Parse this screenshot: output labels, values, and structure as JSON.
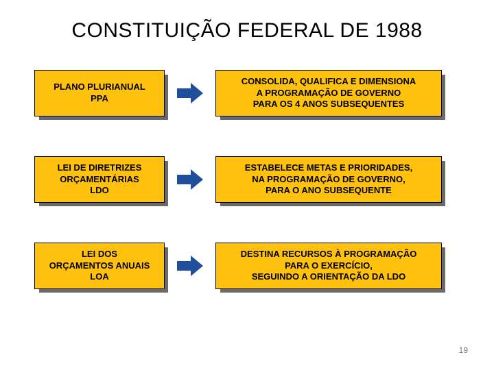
{
  "title": "CONSTITUIÇÃO FEDERAL DE 1988",
  "page_number": "19",
  "colors": {
    "box_fill": "#fec10d",
    "box_border": "#000000",
    "shadow": "#6a6a6a",
    "arrow_fill": "#1f4e9c",
    "text": "#000000",
    "title_text": "#000000",
    "page_num": "#7a7a7a",
    "background": "#ffffff"
  },
  "rows": [
    {
      "left": "PLANO PLURIANUAL\nPPA",
      "right": "CONSOLIDA, QUALIFICA E DIMENSIONA\nA PROGRAMAÇÃO DE GOVERNO\nPARA OS 4 ANOS SUBSEQUENTES"
    },
    {
      "left": "LEI DE DIRETRIZES\nORÇAMENTÁRIAS\nLDO",
      "right": "ESTABELECE METAS E PRIORIDADES,\nNA PROGRAMAÇÃO DE GOVERNO,\nPARA O ANO SUBSEQUENTE"
    },
    {
      "left": "LEI DOS\nORÇAMENTOS ANUAIS\nLOA",
      "right": "DESTINA RECURSOS À PROGRAMAÇÃO\nPARA O EXERCÍCIO,\nSEGUINDO A ORIENTAÇÃO DA LDO"
    }
  ]
}
